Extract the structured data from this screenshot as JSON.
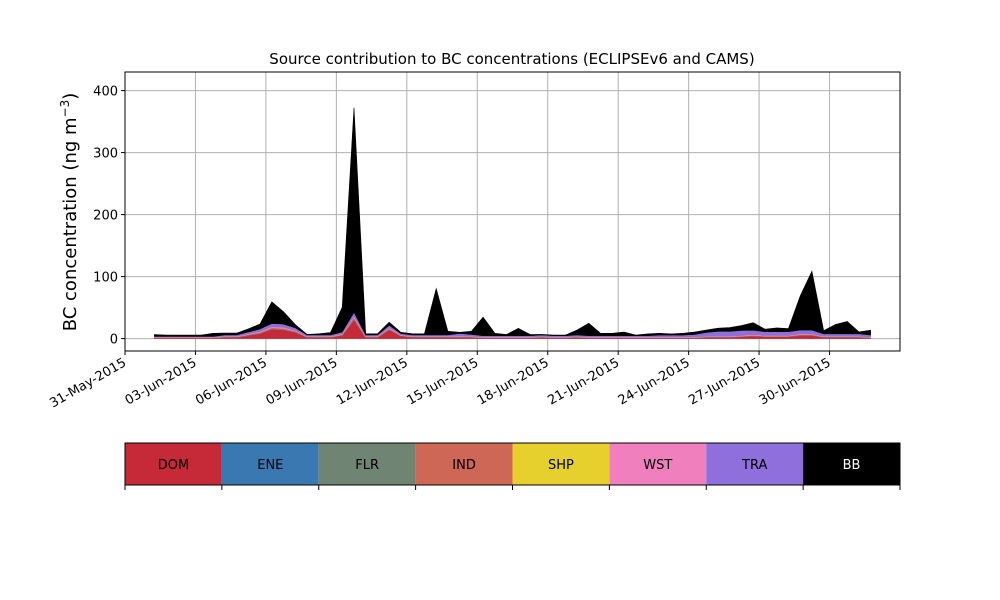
{
  "chart_data": {
    "type": "area",
    "stacked": true,
    "title": "Source contribution to BC concentrations (ECLIPSEv6 and CAMS)",
    "xlabel": "",
    "ylabel_main": "BC concentration (ng m",
    "ylabel_sup": "−3",
    "ylabel_close": ")",
    "grid": true,
    "xlim": [
      "2015-05-31",
      "2015-07-03"
    ],
    "ylim": [
      -20,
      430
    ],
    "y_ticks": [
      0,
      100,
      200,
      300,
      400
    ],
    "x_ticks": [
      {
        "date": "2015-05-31",
        "label": "31-May-2015"
      },
      {
        "date": "2015-06-03",
        "label": "03-Jun-2015"
      },
      {
        "date": "2015-06-06",
        "label": "06-Jun-2015"
      },
      {
        "date": "2015-06-09",
        "label": "09-Jun-2015"
      },
      {
        "date": "2015-06-12",
        "label": "12-Jun-2015"
      },
      {
        "date": "2015-06-15",
        "label": "15-Jun-2015"
      },
      {
        "date": "2015-06-18",
        "label": "18-Jun-2015"
      },
      {
        "date": "2015-06-21",
        "label": "21-Jun-2015"
      },
      {
        "date": "2015-06-24",
        "label": "24-Jun-2015"
      },
      {
        "date": "2015-06-27",
        "label": "27-Jun-2015"
      },
      {
        "date": "2015-06-30",
        "label": "30-Jun-2015"
      }
    ],
    "x": [
      "2015-06-01 06:00",
      "2015-06-01 18:00",
      "2015-06-02 06:00",
      "2015-06-02 18:00",
      "2015-06-03 06:00",
      "2015-06-03 18:00",
      "2015-06-04 06:00",
      "2015-06-04 18:00",
      "2015-06-05 06:00",
      "2015-06-05 18:00",
      "2015-06-06 06:00",
      "2015-06-06 18:00",
      "2015-06-07 06:00",
      "2015-06-07 18:00",
      "2015-06-08 06:00",
      "2015-06-08 18:00",
      "2015-06-09 06:00",
      "2015-06-09 18:00",
      "2015-06-10 06:00",
      "2015-06-10 18:00",
      "2015-06-11 06:00",
      "2015-06-11 18:00",
      "2015-06-12 06:00",
      "2015-06-12 18:00",
      "2015-06-13 06:00",
      "2015-06-13 18:00",
      "2015-06-14 06:00",
      "2015-06-14 18:00",
      "2015-06-15 06:00",
      "2015-06-15 18:00",
      "2015-06-16 06:00",
      "2015-06-16 18:00",
      "2015-06-17 06:00",
      "2015-06-17 18:00",
      "2015-06-18 06:00",
      "2015-06-18 18:00",
      "2015-06-19 06:00",
      "2015-06-19 18:00",
      "2015-06-20 06:00",
      "2015-06-20 18:00",
      "2015-06-21 06:00",
      "2015-06-21 18:00",
      "2015-06-22 06:00",
      "2015-06-22 18:00",
      "2015-06-23 06:00",
      "2015-06-23 18:00",
      "2015-06-24 06:00",
      "2015-06-24 18:00",
      "2015-06-25 06:00",
      "2015-06-25 18:00",
      "2015-06-26 06:00",
      "2015-06-26 18:00",
      "2015-06-27 06:00",
      "2015-06-27 18:00",
      "2015-06-28 06:00",
      "2015-06-28 18:00",
      "2015-06-29 06:00",
      "2015-06-29 18:00",
      "2015-06-30 06:00",
      "2015-06-30 18:00",
      "2015-07-01 06:00",
      "2015-07-01 18:00"
    ],
    "series": [
      {
        "name": "DOM",
        "color": "#c62a39",
        "values": [
          1,
          1,
          1,
          1,
          1,
          1,
          2,
          2,
          5,
          8,
          15,
          14,
          10,
          2,
          2,
          2,
          5,
          30,
          2,
          2,
          14,
          4,
          2,
          2,
          2,
          2,
          2,
          2,
          1,
          1,
          1,
          1,
          1,
          2,
          1,
          1,
          2,
          1,
          1,
          1,
          1,
          1,
          1,
          1,
          1,
          1,
          1,
          2,
          2,
          2,
          3,
          4,
          3,
          3,
          3,
          5,
          5,
          2,
          2,
          2,
          2,
          1
        ]
      },
      {
        "name": "ENE",
        "color": "#3a78b1",
        "values": [
          0.3,
          0.3,
          0.3,
          0.3,
          0.3,
          0.3,
          0.3,
          0.3,
          0.4,
          0.5,
          0.6,
          0.6,
          0.5,
          0.3,
          0.3,
          0.3,
          0.4,
          1,
          0.3,
          0.3,
          0.5,
          0.3,
          0.3,
          0.3,
          0.3,
          0.3,
          0.3,
          0.3,
          0.3,
          0.3,
          0.3,
          0.3,
          0.3,
          0.3,
          0.3,
          0.3,
          0.3,
          0.3,
          0.3,
          0.3,
          0.3,
          0.3,
          0.3,
          0.3,
          0.3,
          0.3,
          0.3,
          0.3,
          0.3,
          0.3,
          0.3,
          0.3,
          0.3,
          0.3,
          0.3,
          0.4,
          0.4,
          0.3,
          0.3,
          0.3,
          0.3,
          0.3
        ]
      },
      {
        "name": "FLR",
        "color": "#6f8472",
        "values": [
          0.2,
          0.2,
          0.2,
          0.2,
          0.2,
          0.2,
          0.2,
          0.2,
          0.2,
          0.2,
          0.2,
          0.2,
          0.2,
          0.2,
          0.2,
          0.2,
          0.2,
          0.3,
          0.2,
          0.2,
          0.2,
          0.2,
          0.2,
          0.2,
          0.2,
          0.2,
          0.2,
          0.2,
          0.2,
          0.2,
          0.2,
          0.2,
          0.2,
          0.2,
          0.2,
          0.2,
          0.2,
          0.2,
          0.2,
          0.2,
          0.2,
          0.2,
          0.2,
          0.2,
          0.2,
          0.2,
          0.2,
          0.2,
          0.2,
          0.2,
          0.2,
          0.2,
          0.2,
          0.2,
          0.2,
          0.2,
          0.2,
          0.2,
          0.2,
          0.2,
          0.2,
          0.2
        ]
      },
      {
        "name": "IND",
        "color": "#cf6757",
        "values": [
          0.5,
          0.5,
          0.5,
          0.5,
          0.5,
          0.5,
          0.6,
          0.6,
          1,
          1.5,
          2,
          2,
          1.5,
          0.6,
          0.6,
          0.6,
          1,
          3,
          0.6,
          0.6,
          1.5,
          0.8,
          0.6,
          0.6,
          0.6,
          0.6,
          0.6,
          0.6,
          0.5,
          0.5,
          0.5,
          0.5,
          0.5,
          0.6,
          0.5,
          0.5,
          0.6,
          0.5,
          0.5,
          0.5,
          0.5,
          0.5,
          0.5,
          0.5,
          0.5,
          0.5,
          0.5,
          0.6,
          0.6,
          0.6,
          0.8,
          1,
          0.8,
          0.8,
          0.8,
          1,
          1,
          0.6,
          0.6,
          0.6,
          0.6,
          0.5
        ]
      },
      {
        "name": "SHP",
        "color": "#e6d02e",
        "values": [
          0.1,
          0.1,
          0.1,
          0.1,
          0.1,
          0.1,
          0.1,
          0.1,
          0.1,
          0.1,
          0.1,
          0.1,
          0.1,
          0.1,
          0.1,
          0.1,
          0.1,
          0.1,
          0.1,
          0.1,
          0.1,
          0.1,
          0.1,
          0.1,
          0.1,
          0.1,
          0.1,
          0.1,
          0.1,
          0.1,
          0.1,
          0.1,
          0.1,
          0.1,
          0.1,
          0.1,
          0.1,
          0.1,
          0.1,
          0.1,
          0.1,
          0.1,
          0.1,
          0.1,
          0.1,
          0.1,
          0.1,
          0.1,
          0.1,
          0.1,
          0.1,
          0.1,
          0.1,
          0.1,
          0.1,
          0.1,
          0.1,
          0.1,
          0.1,
          0.1,
          0.1,
          0.1
        ]
      },
      {
        "name": "WST",
        "color": "#f07fbe",
        "values": [
          0.5,
          0.5,
          0.5,
          0.5,
          0.5,
          0.5,
          0.6,
          0.6,
          1,
          1.2,
          1.5,
          1.5,
          1.2,
          0.6,
          0.6,
          0.6,
          1,
          2,
          0.6,
          0.6,
          1.2,
          0.7,
          0.6,
          0.6,
          0.6,
          0.6,
          1,
          0.6,
          0.5,
          0.5,
          0.5,
          0.5,
          0.5,
          0.6,
          0.5,
          0.5,
          0.6,
          0.5,
          0.5,
          0.5,
          0.5,
          0.5,
          0.5,
          0.5,
          0.5,
          0.5,
          0.5,
          0.6,
          0.6,
          0.6,
          0.8,
          1,
          0.8,
          0.8,
          0.8,
          1,
          1,
          0.6,
          0.6,
          0.6,
          0.6,
          0.5
        ]
      },
      {
        "name": "TRA",
        "color": "#8e6fdb",
        "values": [
          1,
          1,
          1,
          1,
          1,
          1,
          2,
          2,
          3,
          4,
          5,
          5,
          4,
          2,
          2,
          2,
          3,
          6,
          2,
          2,
          4,
          2,
          2,
          2,
          2,
          2,
          4,
          3,
          2,
          2,
          2,
          2,
          2,
          2,
          2,
          2,
          2,
          2,
          2,
          2,
          2,
          2,
          2,
          3,
          3,
          3,
          4,
          6,
          8,
          8,
          8,
          7,
          6,
          6,
          6,
          6,
          6,
          4,
          4,
          4,
          4,
          3
        ]
      },
      {
        "name": "BB",
        "color": "#000000",
        "values": [
          3,
          2,
          2,
          2,
          2,
          5,
          3,
          3,
          5,
          8,
          35,
          20,
          5,
          1,
          2,
          4,
          40,
          330,
          2,
          2,
          5,
          2,
          2,
          2,
          75,
          6,
          2,
          5,
          30,
          4,
          2,
          12,
          2,
          1,
          1,
          1,
          8,
          20,
          4,
          4,
          6,
          1,
          3,
          3,
          2,
          3,
          4,
          4,
          5,
          6,
          8,
          12,
          4,
          6,
          5,
          55,
          95,
          5,
          15,
          20,
          3,
          8
        ]
      }
    ]
  }
}
